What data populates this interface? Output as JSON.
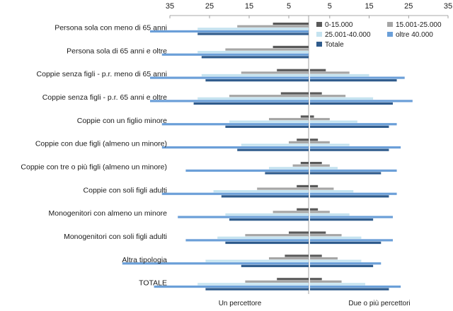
{
  "chart_data": {
    "type": "bar",
    "orientation": "horizontal-butterfly",
    "categories": [
      "Persona sola con meno di 65 anni",
      "Persona sola di 65 anni e oltre",
      "Coppie senza figli - p.r. meno di 65 anni",
      "Coppie senza figli - p.r. 65 anni e oltre",
      "Coppie con un figlio minore",
      "Coppie con due figli (almeno un minore)",
      "Coppie con tre o più figli (almeno un minore)",
      "Coppie con soli figli adulti",
      "Monogenitori con almeno un minore",
      "Monogenitori con soli figli adulti",
      "Altra tipologia",
      "TOTALE"
    ],
    "panels": [
      {
        "label": "Un percettore",
        "direction": "left"
      },
      {
        "label": "Due o più percettori",
        "direction": "right"
      }
    ],
    "series": [
      {
        "name": "0-15.000",
        "color": "#595959",
        "left": [
          9,
          9,
          8,
          7,
          2,
          3,
          2,
          3,
          3,
          5,
          6,
          8
        ],
        "right": [
          null,
          null,
          4,
          3,
          1,
          2,
          3,
          2,
          2,
          4,
          3,
          3
        ]
      },
      {
        "name": "15.001-25.000",
        "color": "#a6a6a6",
        "left": [
          18,
          21,
          17,
          20,
          10,
          5,
          4,
          13,
          9,
          16,
          10,
          16
        ],
        "right": [
          null,
          null,
          10,
          9,
          5,
          5,
          5,
          6,
          5,
          8,
          7,
          8
        ]
      },
      {
        "name": "25.001-40.000",
        "color": "#c5e3f0",
        "left": [
          28,
          28,
          27,
          28,
          20,
          17,
          10,
          24,
          21,
          23,
          26,
          28
        ],
        "right": [
          null,
          null,
          15,
          16,
          12,
          10,
          7,
          11,
          10,
          13,
          13,
          14
        ]
      },
      {
        "name": "oltre 40.000",
        "color": "#6b9fd8",
        "left": [
          40,
          37,
          40,
          40,
          37,
          37,
          31,
          37,
          33,
          31,
          47,
          39
        ],
        "right": [
          null,
          null,
          24,
          26,
          22,
          23,
          22,
          22,
          21,
          21,
          18,
          23
        ]
      },
      {
        "name": "Totale",
        "color": "#2f5b8c",
        "left": [
          28,
          27,
          26,
          29,
          21,
          18,
          11,
          22,
          20,
          21,
          17,
          26
        ],
        "right": [
          null,
          null,
          22,
          21,
          20,
          20,
          18,
          20,
          16,
          18,
          16,
          20
        ]
      }
    ],
    "x_ticks_left": [
      "35",
      "25",
      "15",
      "5"
    ],
    "x_ticks_right": [
      "5",
      "15",
      "25",
      "35"
    ],
    "xlim_left": [
      0,
      35
    ],
    "xlim_right": [
      0,
      35
    ],
    "legend_position": "top-right",
    "grid": false
  }
}
